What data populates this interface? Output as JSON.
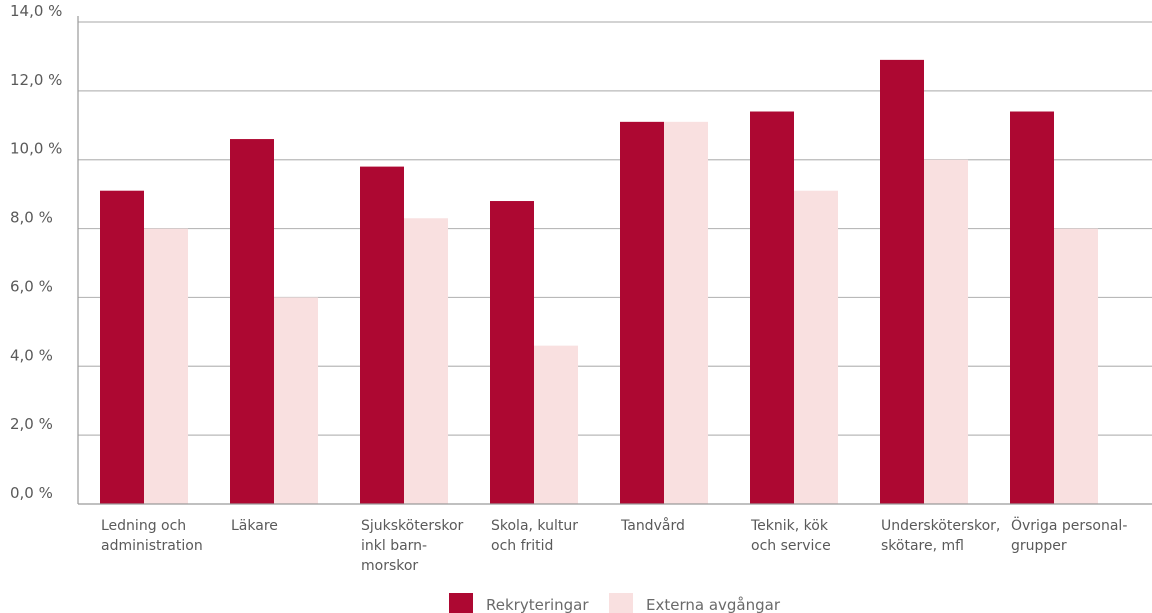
{
  "chart_data": {
    "type": "bar",
    "categories": [
      [
        "Ledning och",
        "administration"
      ],
      [
        "Läkare"
      ],
      [
        "Sjuksköterskor",
        "inkl barn-",
        "morskor"
      ],
      [
        "Skola, kultur",
        "och fritid"
      ],
      [
        "Tandvård"
      ],
      [
        "Teknik, kök",
        "och service"
      ],
      [
        "Undersköterskor,",
        "skötare, mfl"
      ],
      [
        "Övriga personal-",
        "grupper"
      ]
    ],
    "series": [
      {
        "name": "Rekryteringar",
        "color": "#ad0832",
        "values": [
          9.1,
          10.6,
          9.8,
          8.8,
          11.1,
          11.4,
          12.9,
          11.4
        ]
      },
      {
        "name": "Externa avgångar",
        "color": "#f9e0e0",
        "values": [
          8.0,
          6.0,
          8.3,
          4.6,
          11.1,
          9.1,
          10.0,
          8.0
        ]
      }
    ],
    "ylim": [
      0,
      14
    ],
    "yticks": [
      "0,0 %",
      "2,0 %",
      "4,0 %",
      "6,0 %",
      "8,0 %",
      "10,0 %",
      "12,0 %",
      "14,0 %"
    ],
    "title": "",
    "xlabel": "",
    "ylabel": "",
    "grid": true,
    "legend": "bottom-center"
  }
}
